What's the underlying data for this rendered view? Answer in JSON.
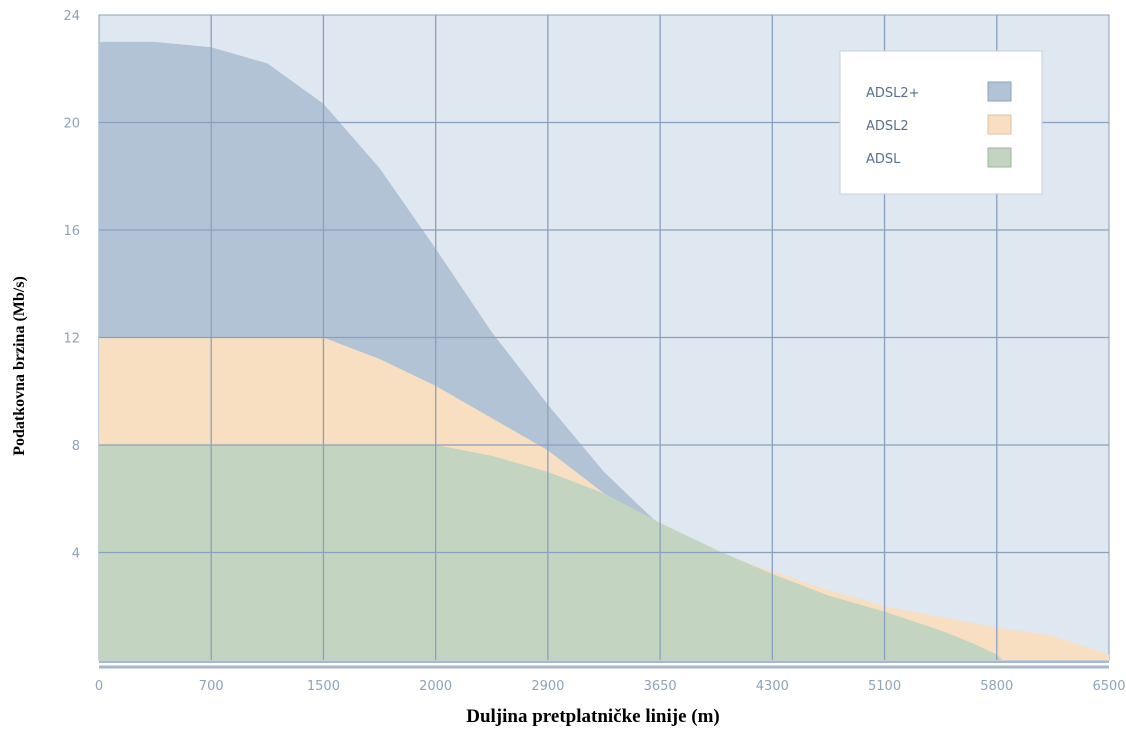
{
  "chart_data": {
    "type": "area",
    "title": "",
    "xlabel": "Duljina pretplatničke linije (m)",
    "ylabel": "Podatkovna brzina (Mb/s)",
    "x_tick_labels": [
      "0",
      "700",
      "1500",
      "2000",
      "2900",
      "3650",
      "4300",
      "5100",
      "5800",
      "6500"
    ],
    "x_scale_note": "categorical evenly spaced ticks",
    "yticks": [
      4,
      8,
      12,
      16,
      20,
      24
    ],
    "ylim": [
      0,
      24
    ],
    "grid": true,
    "legend_position": "top-right",
    "series": [
      {
        "name": "ADSL2+",
        "color": "#b3c3d6",
        "points": [
          [
            0,
            23.0
          ],
          [
            0.5,
            23.0
          ],
          [
            1.0,
            22.8
          ],
          [
            1.5,
            22.2
          ],
          [
            2.0,
            20.7
          ],
          [
            2.5,
            18.3
          ],
          [
            3.0,
            15.3
          ],
          [
            3.5,
            12.2
          ],
          [
            4.0,
            9.5
          ],
          [
            4.5,
            7.0
          ],
          [
            5.0,
            5.0
          ],
          [
            5.05,
            4.8
          ]
        ]
      },
      {
        "name": "ADSL2",
        "color": "#f8dfc2",
        "points": [
          [
            0,
            12.0
          ],
          [
            2.0,
            12.0
          ],
          [
            2.5,
            11.2
          ],
          [
            3.0,
            10.2
          ],
          [
            3.5,
            9.0
          ],
          [
            4.0,
            7.8
          ],
          [
            4.5,
            6.2
          ],
          [
            5.0,
            4.9
          ],
          [
            5.5,
            4.0
          ],
          [
            6.0,
            3.3
          ],
          [
            6.5,
            2.6
          ],
          [
            7.0,
            2.0
          ],
          [
            7.5,
            1.6
          ],
          [
            8.0,
            1.2
          ],
          [
            8.5,
            0.9
          ],
          [
            9.0,
            0.2
          ]
        ]
      },
      {
        "name": "ADSL",
        "color": "#c3d5c0",
        "points": [
          [
            0,
            8.0
          ],
          [
            3.0,
            8.0
          ],
          [
            3.5,
            7.6
          ],
          [
            4.0,
            7.0
          ],
          [
            4.5,
            6.2
          ],
          [
            5.0,
            5.1
          ],
          [
            5.5,
            4.1
          ],
          [
            6.0,
            3.2
          ],
          [
            6.5,
            2.4
          ],
          [
            7.0,
            1.8
          ],
          [
            7.5,
            1.1
          ],
          [
            7.8,
            0.6
          ],
          [
            8.0,
            0.2
          ],
          [
            8.05,
            0.0
          ]
        ]
      }
    ]
  },
  "colors": {
    "plot_background": "#dfe7f0",
    "grid": "#8aa0bd",
    "axis_line": "#a7b8ce",
    "tick_text": "#8ea3bd"
  }
}
